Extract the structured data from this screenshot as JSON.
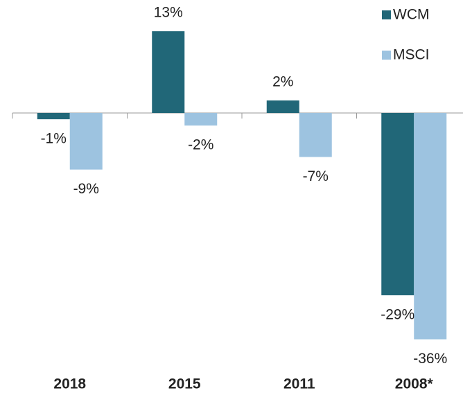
{
  "chart_data": {
    "type": "bar",
    "categories": [
      "2018",
      "2015",
      "2011",
      "2008*"
    ],
    "series": [
      {
        "name": "WCM",
        "color": "#216778",
        "values": [
          -1,
          13,
          2,
          -29
        ],
        "value_labels": [
          "-1%",
          "13%",
          "2%",
          "-29%"
        ]
      },
      {
        "name": "MSCI",
        "color": "#9dc3e0",
        "values": [
          -9,
          -2,
          -7,
          -36
        ],
        "value_labels": [
          "-9%",
          "-2%",
          "-7%",
          "-36%"
        ]
      }
    ]
  }
}
